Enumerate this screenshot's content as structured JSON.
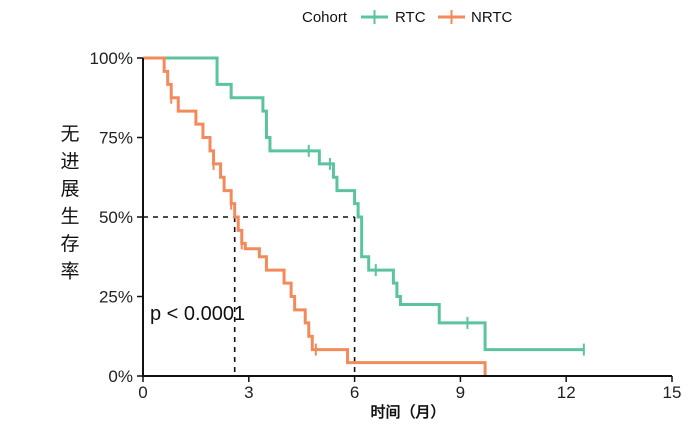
{
  "legend": {
    "title": "Cohort"
  },
  "annotation": "p < 0.0001",
  "chart_data": {
    "type": "line",
    "subtype": "kaplan-meier step",
    "xlabel": "时间（月）",
    "ylabel": "无进展生存率",
    "xlim": [
      0,
      15
    ],
    "ylim": [
      0,
      1
    ],
    "x_ticks": [
      0,
      3,
      6,
      9,
      12,
      15
    ],
    "x_tick_labels": [
      "0",
      "3",
      "6",
      "9",
      "12",
      "15"
    ],
    "y_ticks": [
      0,
      0.25,
      0.5,
      0.75,
      1.0
    ],
    "y_tick_labels": [
      "0%",
      "25%",
      "50%",
      "75%",
      "100%"
    ],
    "legend_position": "top",
    "grid": false,
    "median_reference": {
      "y": 0.5,
      "x_values": [
        2.6,
        6.0
      ]
    },
    "series": [
      {
        "name": "RTC",
        "color": "#5cc3a0",
        "steps": [
          [
            0,
            1.0
          ],
          [
            2.1,
            0.917
          ],
          [
            2.5,
            0.875
          ],
          [
            3.4,
            0.833
          ],
          [
            3.5,
            0.75
          ],
          [
            3.6,
            0.708
          ],
          [
            5.0,
            0.667
          ],
          [
            5.4,
            0.625
          ],
          [
            5.5,
            0.583
          ],
          [
            6.0,
            0.542
          ],
          [
            6.1,
            0.5
          ],
          [
            6.2,
            0.375
          ],
          [
            6.4,
            0.333
          ],
          [
            7.1,
            0.292
          ],
          [
            7.2,
            0.25
          ],
          [
            7.3,
            0.225
          ],
          [
            8.4,
            0.167
          ],
          [
            9.7,
            0.083
          ],
          [
            12.5,
            0.083
          ]
        ],
        "censor_x": [
          4.7,
          5.3,
          6.6,
          9.2,
          12.5
        ]
      },
      {
        "name": "NRTC",
        "color": "#f28a5b",
        "steps": [
          [
            0,
            1.0
          ],
          [
            0.6,
            0.958
          ],
          [
            0.7,
            0.917
          ],
          [
            0.8,
            0.875
          ],
          [
            1.0,
            0.833
          ],
          [
            1.5,
            0.792
          ],
          [
            1.7,
            0.75
          ],
          [
            1.9,
            0.708
          ],
          [
            2.0,
            0.667
          ],
          [
            2.2,
            0.625
          ],
          [
            2.3,
            0.583
          ],
          [
            2.5,
            0.542
          ],
          [
            2.6,
            0.5
          ],
          [
            2.7,
            0.458
          ],
          [
            2.8,
            0.417
          ],
          [
            2.9,
            0.4
          ],
          [
            3.3,
            0.375
          ],
          [
            3.5,
            0.333
          ],
          [
            4.0,
            0.292
          ],
          [
            4.2,
            0.25
          ],
          [
            4.3,
            0.208
          ],
          [
            4.6,
            0.167
          ],
          [
            4.7,
            0.125
          ],
          [
            4.8,
            0.083
          ],
          [
            5.8,
            0.042
          ],
          [
            9.7,
            0.042
          ],
          [
            9.7,
            0.0
          ]
        ],
        "censor_x": [
          0.8,
          2.0,
          2.5,
          2.8,
          4.9
        ]
      }
    ]
  }
}
